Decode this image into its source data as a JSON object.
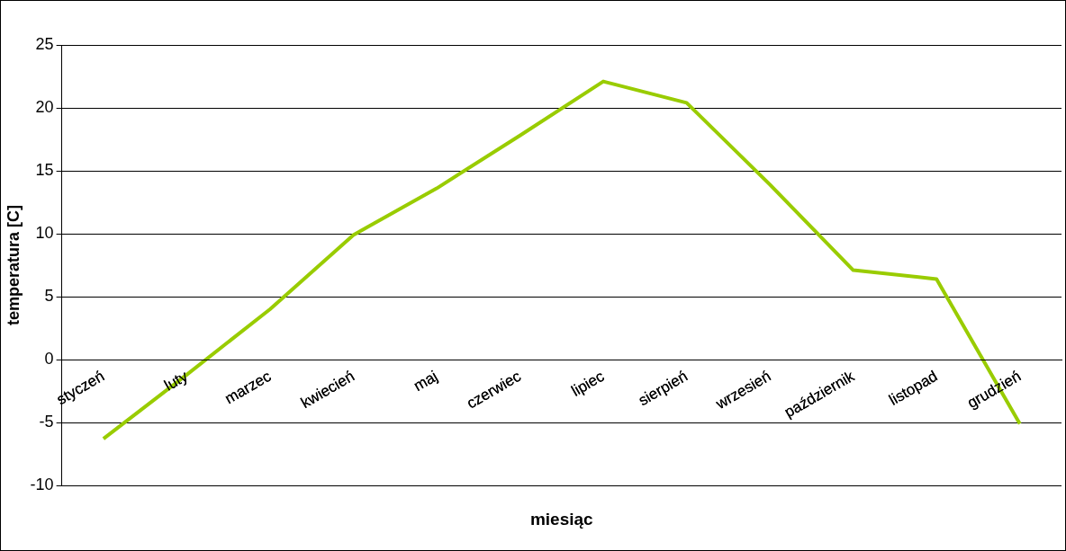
{
  "chart_data": {
    "type": "line",
    "xlabel": "miesiąc",
    "ylabel": "temperatura [C]",
    "categories": [
      "styczeń",
      "luty",
      "marzec",
      "kwiecień",
      "maj",
      "czerwiec",
      "lipiec",
      "sierpień",
      "wrzesień",
      "październik",
      "listopad",
      "grudzień"
    ],
    "series": [
      {
        "color": "#99cc00",
        "values": [
          -6.3,
          -1.2,
          4.0,
          9.9,
          13.6,
          17.8,
          22.1,
          20.4,
          13.9,
          7.1,
          6.4,
          -5.1
        ]
      }
    ],
    "ylim": [
      -10,
      25
    ],
    "yticks": [
      -10,
      -5,
      0,
      5,
      10,
      15,
      20,
      25
    ],
    "grid": "y",
    "legend": false,
    "marker": "none",
    "line_style": "solid"
  }
}
